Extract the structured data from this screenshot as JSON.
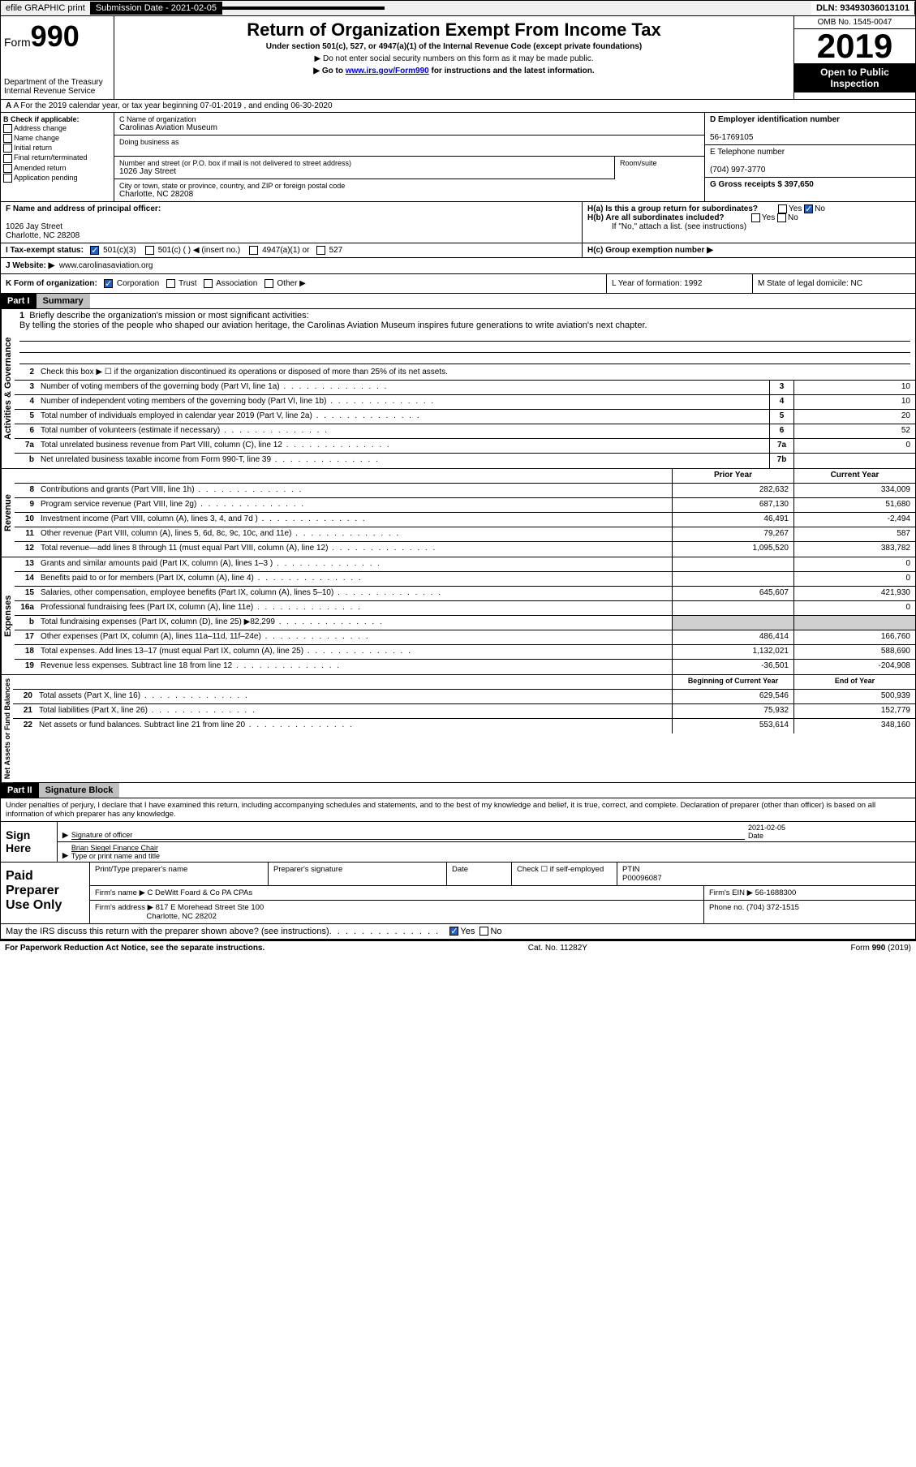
{
  "topbar": {
    "efile": "efile GRAPHIC print",
    "submission_label": "Submission Date - 2021-02-05",
    "dln": "DLN: 93493036013101"
  },
  "header": {
    "form_word": "Form",
    "form_num": "990",
    "dept1": "Department of the Treasury",
    "dept2": "Internal Revenue Service",
    "title": "Return of Organization Exempt From Income Tax",
    "subtitle": "Under section 501(c), 527, or 4947(a)(1) of the Internal Revenue Code (except private foundations)",
    "note1": "▶ Do not enter social security numbers on this form as it may be made public.",
    "note2_pre": "▶ Go to ",
    "note2_link": "www.irs.gov/Form990",
    "note2_post": " for instructions and the latest information.",
    "omb": "OMB No. 1545-0047",
    "year": "2019",
    "inspect": "Open to Public Inspection"
  },
  "rowA": "A For the 2019 calendar year, or tax year beginning 07-01-2019   , and ending 06-30-2020",
  "colB": {
    "label": "B Check if applicable:",
    "opts": [
      "Address change",
      "Name change",
      "Initial return",
      "Final return/terminated",
      "Amended return",
      "Application pending"
    ]
  },
  "colC": {
    "name_label": "C Name of organization",
    "name": "Carolinas Aviation Museum",
    "dba_label": "Doing business as",
    "addr_label": "Number and street (or P.O. box if mail is not delivered to street address)",
    "room_label": "Room/suite",
    "addr": "1026 Jay Street",
    "city_label": "City or town, state or province, country, and ZIP or foreign postal code",
    "city": "Charlotte, NC  28208"
  },
  "colD": {
    "ein_label": "D Employer identification number",
    "ein": "56-1769105",
    "tel_label": "E Telephone number",
    "tel": "(704) 997-3770",
    "gross_label": "G Gross receipts $ 397,650"
  },
  "rowF": {
    "label": "F  Name and address of principal officer:",
    "addr1": "1026 Jay Street",
    "addr2": "Charlotte, NC  28208"
  },
  "rowH": {
    "ha": "H(a)  Is this a group return for subordinates?",
    "hb": "H(b)  Are all subordinates included?",
    "hb_note": "If \"No,\" attach a list. (see instructions)",
    "hc": "H(c)  Group exemption number ▶",
    "yes": "Yes",
    "no": "No"
  },
  "rowI": {
    "label": "I   Tax-exempt status:",
    "o1": "501(c)(3)",
    "o2": "501(c) (   ) ◀ (insert no.)",
    "o3": "4947(a)(1) or",
    "o4": "527"
  },
  "rowJ": {
    "label": "J   Website: ▶",
    "val": "www.carolinasaviation.org"
  },
  "rowK": {
    "label": "K Form of organization:",
    "o1": "Corporation",
    "o2": "Trust",
    "o3": "Association",
    "o4": "Other ▶",
    "L": "L Year of formation: 1992",
    "M": "M State of legal domicile: NC"
  },
  "part1": {
    "num": "Part I",
    "title": "Summary"
  },
  "summary": {
    "l1_label": "Briefly describe the organization's mission or most significant activities:",
    "l1_text": "By telling the stories of the people who shaped our aviation heritage, the Carolinas Aviation Museum inspires future generations to write aviation's next chapter.",
    "l2": "Check this box ▶ ☐  if the organization discontinued its operations or disposed of more than 25% of its net assets.",
    "lines_gov": [
      {
        "n": "3",
        "d": "Number of voting members of the governing body (Part VI, line 1a)",
        "b": "3",
        "v": "10"
      },
      {
        "n": "4",
        "d": "Number of independent voting members of the governing body (Part VI, line 1b)",
        "b": "4",
        "v": "10"
      },
      {
        "n": "5",
        "d": "Total number of individuals employed in calendar year 2019 (Part V, line 2a)",
        "b": "5",
        "v": "20"
      },
      {
        "n": "6",
        "d": "Total number of volunteers (estimate if necessary)",
        "b": "6",
        "v": "52"
      },
      {
        "n": "7a",
        "d": "Total unrelated business revenue from Part VIII, column (C), line 12",
        "b": "7a",
        "v": "0"
      },
      {
        "n": "b",
        "d": "Net unrelated business taxable income from Form 990-T, line 39",
        "b": "7b",
        "v": ""
      }
    ],
    "col_prior": "Prior Year",
    "col_curr": "Current Year",
    "revenue": [
      {
        "n": "8",
        "d": "Contributions and grants (Part VIII, line 1h)",
        "p": "282,632",
        "c": "334,009"
      },
      {
        "n": "9",
        "d": "Program service revenue (Part VIII, line 2g)",
        "p": "687,130",
        "c": "51,680"
      },
      {
        "n": "10",
        "d": "Investment income (Part VIII, column (A), lines 3, 4, and 7d )",
        "p": "46,491",
        "c": "-2,494"
      },
      {
        "n": "11",
        "d": "Other revenue (Part VIII, column (A), lines 5, 6d, 8c, 9c, 10c, and 11e)",
        "p": "79,267",
        "c": "587"
      },
      {
        "n": "12",
        "d": "Total revenue—add lines 8 through 11 (must equal Part VIII, column (A), line 12)",
        "p": "1,095,520",
        "c": "383,782"
      }
    ],
    "expenses": [
      {
        "n": "13",
        "d": "Grants and similar amounts paid (Part IX, column (A), lines 1–3 )",
        "p": "",
        "c": "0"
      },
      {
        "n": "14",
        "d": "Benefits paid to or for members (Part IX, column (A), line 4)",
        "p": "",
        "c": "0"
      },
      {
        "n": "15",
        "d": "Salaries, other compensation, employee benefits (Part IX, column (A), lines 5–10)",
        "p": "645,607",
        "c": "421,930"
      },
      {
        "n": "16a",
        "d": "Professional fundraising fees (Part IX, column (A), line 11e)",
        "p": "",
        "c": "0"
      },
      {
        "n": "b",
        "d": "Total fundraising expenses (Part IX, column (D), line 25) ▶82,299",
        "p": "shade",
        "c": "shade"
      },
      {
        "n": "17",
        "d": "Other expenses (Part IX, column (A), lines 11a–11d, 11f–24e)",
        "p": "486,414",
        "c": "166,760"
      },
      {
        "n": "18",
        "d": "Total expenses. Add lines 13–17 (must equal Part IX, column (A), line 25)",
        "p": "1,132,021",
        "c": "588,690"
      },
      {
        "n": "19",
        "d": "Revenue less expenses. Subtract line 18 from line 12",
        "p": "-36,501",
        "c": "-204,908"
      }
    ],
    "col_begin": "Beginning of Current Year",
    "col_end": "End of Year",
    "netassets": [
      {
        "n": "20",
        "d": "Total assets (Part X, line 16)",
        "p": "629,546",
        "c": "500,939"
      },
      {
        "n": "21",
        "d": "Total liabilities (Part X, line 26)",
        "p": "75,932",
        "c": "152,779"
      },
      {
        "n": "22",
        "d": "Net assets or fund balances. Subtract line 21 from line 20",
        "p": "553,614",
        "c": "348,160"
      }
    ]
  },
  "vlabels": {
    "gov": "Activities & Governance",
    "rev": "Revenue",
    "exp": "Expenses",
    "net": "Net Assets or Fund Balances"
  },
  "part2": {
    "num": "Part II",
    "title": "Signature Block"
  },
  "sig": {
    "decl": "Under penalties of perjury, I declare that I have examined this return, including accompanying schedules and statements, and to the best of my knowledge and belief, it is true, correct, and complete. Declaration of preparer (other than officer) is based on all information of which preparer has any knowledge.",
    "sign_here": "Sign Here",
    "sig_officer": "Signature of officer",
    "date": "Date",
    "date_val": "2021-02-05",
    "name": "Brian Siegel Finance Chair",
    "name_label": "Type or print name and title"
  },
  "prep": {
    "label": "Paid Preparer Use Only",
    "h1": "Print/Type preparer's name",
    "h2": "Preparer's signature",
    "h3": "Date",
    "h4_a": "Check ☐ if self-employed",
    "h4_b": "PTIN",
    "ptin": "P00096087",
    "firm_label": "Firm's name    ▶",
    "firm": "C DeWitt Foard & Co PA CPAs",
    "ein_label": "Firm's EIN ▶",
    "ein": "56-1688300",
    "addr_label": "Firm's address ▶",
    "addr1": "817 E Morehead Street Ste 100",
    "addr2": "Charlotte, NC  28202",
    "phone_label": "Phone no.",
    "phone": "(704) 372-1515",
    "discuss": "May the IRS discuss this return with the preparer shown above? (see instructions)",
    "yes": "Yes",
    "no": "No"
  },
  "footer": {
    "left": "For Paperwork Reduction Act Notice, see the separate instructions.",
    "mid": "Cat. No. 11282Y",
    "right": "Form 990 (2019)"
  }
}
